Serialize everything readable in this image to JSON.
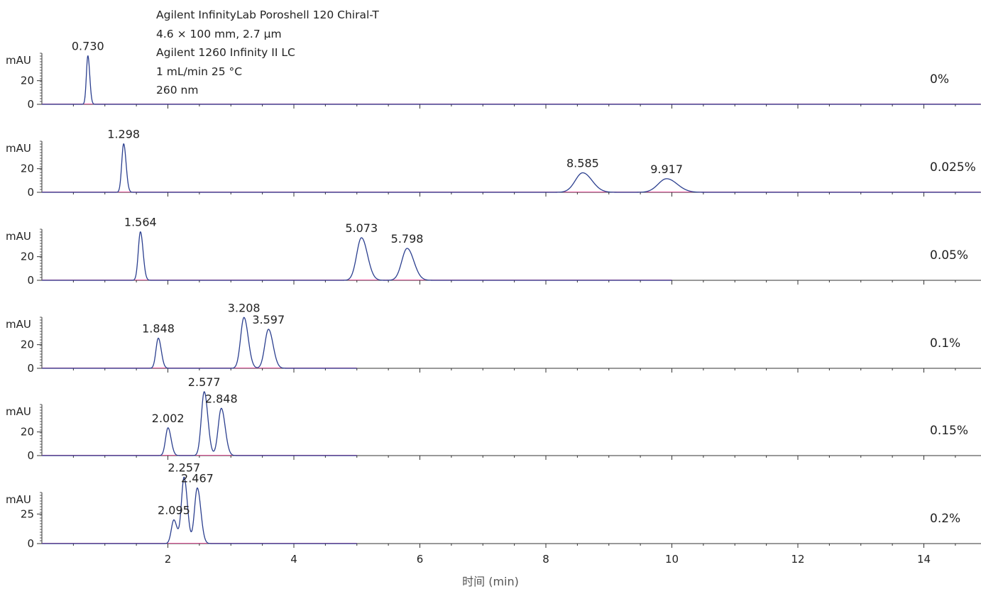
{
  "annotation": [
    "Agilent InfinityLab Poroshell 120 Chiral-T",
    "4.6 × 100 mm, 2.7 µm",
    "Agilent 1260 Infinity II LC",
    "1 mL/min 25 °C",
    "260 nm"
  ],
  "chart_data": {
    "type": "line",
    "title": "",
    "xlabel": "时间 (min)",
    "ylabel": "mAU",
    "xlim": [
      0,
      14.9
    ],
    "xticks": [
      2,
      4,
      6,
      8,
      10,
      12,
      14
    ],
    "grid": false,
    "colors": {
      "trace": "#2b3f8f",
      "baseline": "#e0559a",
      "axis": "#333333"
    },
    "series": [
      {
        "name": "0%",
        "x_end": 14.9,
        "ylim": [
          0,
          45
        ],
        "yticks": [
          0,
          20
        ],
        "peaks": [
          {
            "rt": 0.73,
            "label": "0.730",
            "height": 41
          }
        ]
      },
      {
        "name": "0.025%",
        "x_end": 14.9,
        "ylim": [
          0,
          45
        ],
        "yticks": [
          0,
          20
        ],
        "peaks": [
          {
            "rt": 1.298,
            "label": "1.298",
            "height": 41
          },
          {
            "rt": 8.585,
            "label": "8.585",
            "height": 16.5
          },
          {
            "rt": 9.917,
            "label": "9.917",
            "height": 11.5
          }
        ]
      },
      {
        "name": "0.05%",
        "x_end": 10.0,
        "ylim": [
          0,
          45
        ],
        "yticks": [
          0,
          20
        ],
        "peaks": [
          {
            "rt": 1.564,
            "label": "1.564",
            "height": 41
          },
          {
            "rt": 5.073,
            "label": "5.073",
            "height": 36
          },
          {
            "rt": 5.798,
            "label": "5.798",
            "height": 27
          }
        ]
      },
      {
        "name": "0.1%",
        "x_end": 5.0,
        "ylim": [
          0,
          45
        ],
        "yticks": [
          0,
          20
        ],
        "peaks": [
          {
            "rt": 1.848,
            "label": "1.848",
            "height": 25.5
          },
          {
            "rt": 3.208,
            "label": "3.208",
            "height": 43
          },
          {
            "rt": 3.597,
            "label": "3.597",
            "height": 33
          }
        ]
      },
      {
        "name": "0.15%",
        "x_end": 5.0,
        "ylim": [
          0,
          45
        ],
        "yticks": [
          0,
          20
        ],
        "peaks": [
          {
            "rt": 2.002,
            "label": "2.002",
            "height": 23.5
          },
          {
            "rt": 2.577,
            "label": "2.577",
            "height": 54
          },
          {
            "rt": 2.848,
            "label": "2.848",
            "height": 40
          }
        ]
      },
      {
        "name": "0.2%",
        "x_end": 5.0,
        "ylim": [
          0,
          45
        ],
        "yticks": [
          0,
          25
        ],
        "peaks": [
          {
            "rt": 2.095,
            "label": "2.095",
            "height": 20
          },
          {
            "rt": 2.257,
            "label": "2.257",
            "height": 56
          },
          {
            "rt": 2.467,
            "label": "2.467",
            "height": 47
          }
        ]
      }
    ]
  }
}
